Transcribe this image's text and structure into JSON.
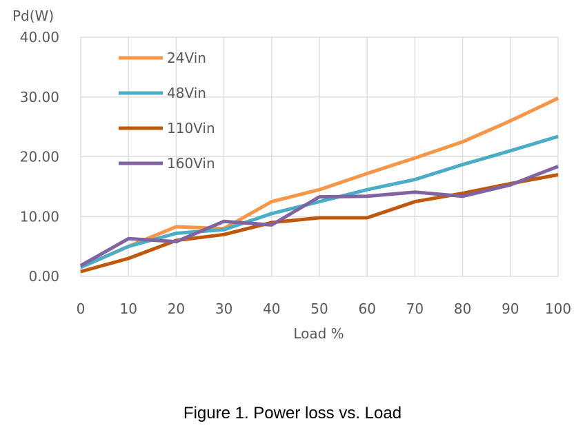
{
  "chart_data": {
    "type": "line",
    "ylabel": "Pd(W)",
    "xlabel": "Load %",
    "x": [
      0,
      10,
      20,
      30,
      40,
      50,
      60,
      70,
      80,
      90,
      100
    ],
    "x_tick_labels": [
      "0",
      "10",
      "20",
      "30",
      "40",
      "50",
      "60",
      "70",
      "80",
      "90",
      "100"
    ],
    "y_tick_labels": [
      "0.00",
      "10.00",
      "20.00",
      "30.00",
      "40.00"
    ],
    "ylim": [
      0,
      40
    ],
    "grid": true,
    "legend_position": "top-left inside",
    "series": [
      {
        "name": "24Vin",
        "color": "#f79646",
        "values": [
          1.5,
          5.0,
          8.3,
          8.0,
          12.5,
          14.5,
          17.2,
          19.8,
          22.5,
          26.0,
          29.8
        ]
      },
      {
        "name": "48Vin",
        "color": "#4bacc6",
        "values": [
          1.5,
          5.0,
          7.2,
          7.8,
          10.5,
          12.5,
          14.5,
          16.2,
          18.7,
          21.0,
          23.4
        ]
      },
      {
        "name": "110Vin",
        "color": "#c0580c",
        "values": [
          0.8,
          3.0,
          6.0,
          7.0,
          9.0,
          9.8,
          9.8,
          12.5,
          13.9,
          15.5,
          17.0
        ]
      },
      {
        "name": "160Vin",
        "color": "#8064a2",
        "values": [
          1.8,
          6.3,
          5.8,
          9.2,
          8.6,
          13.3,
          13.4,
          14.1,
          13.4,
          15.3,
          18.4
        ]
      }
    ]
  },
  "caption": "Figure 1. Power loss vs. Load"
}
